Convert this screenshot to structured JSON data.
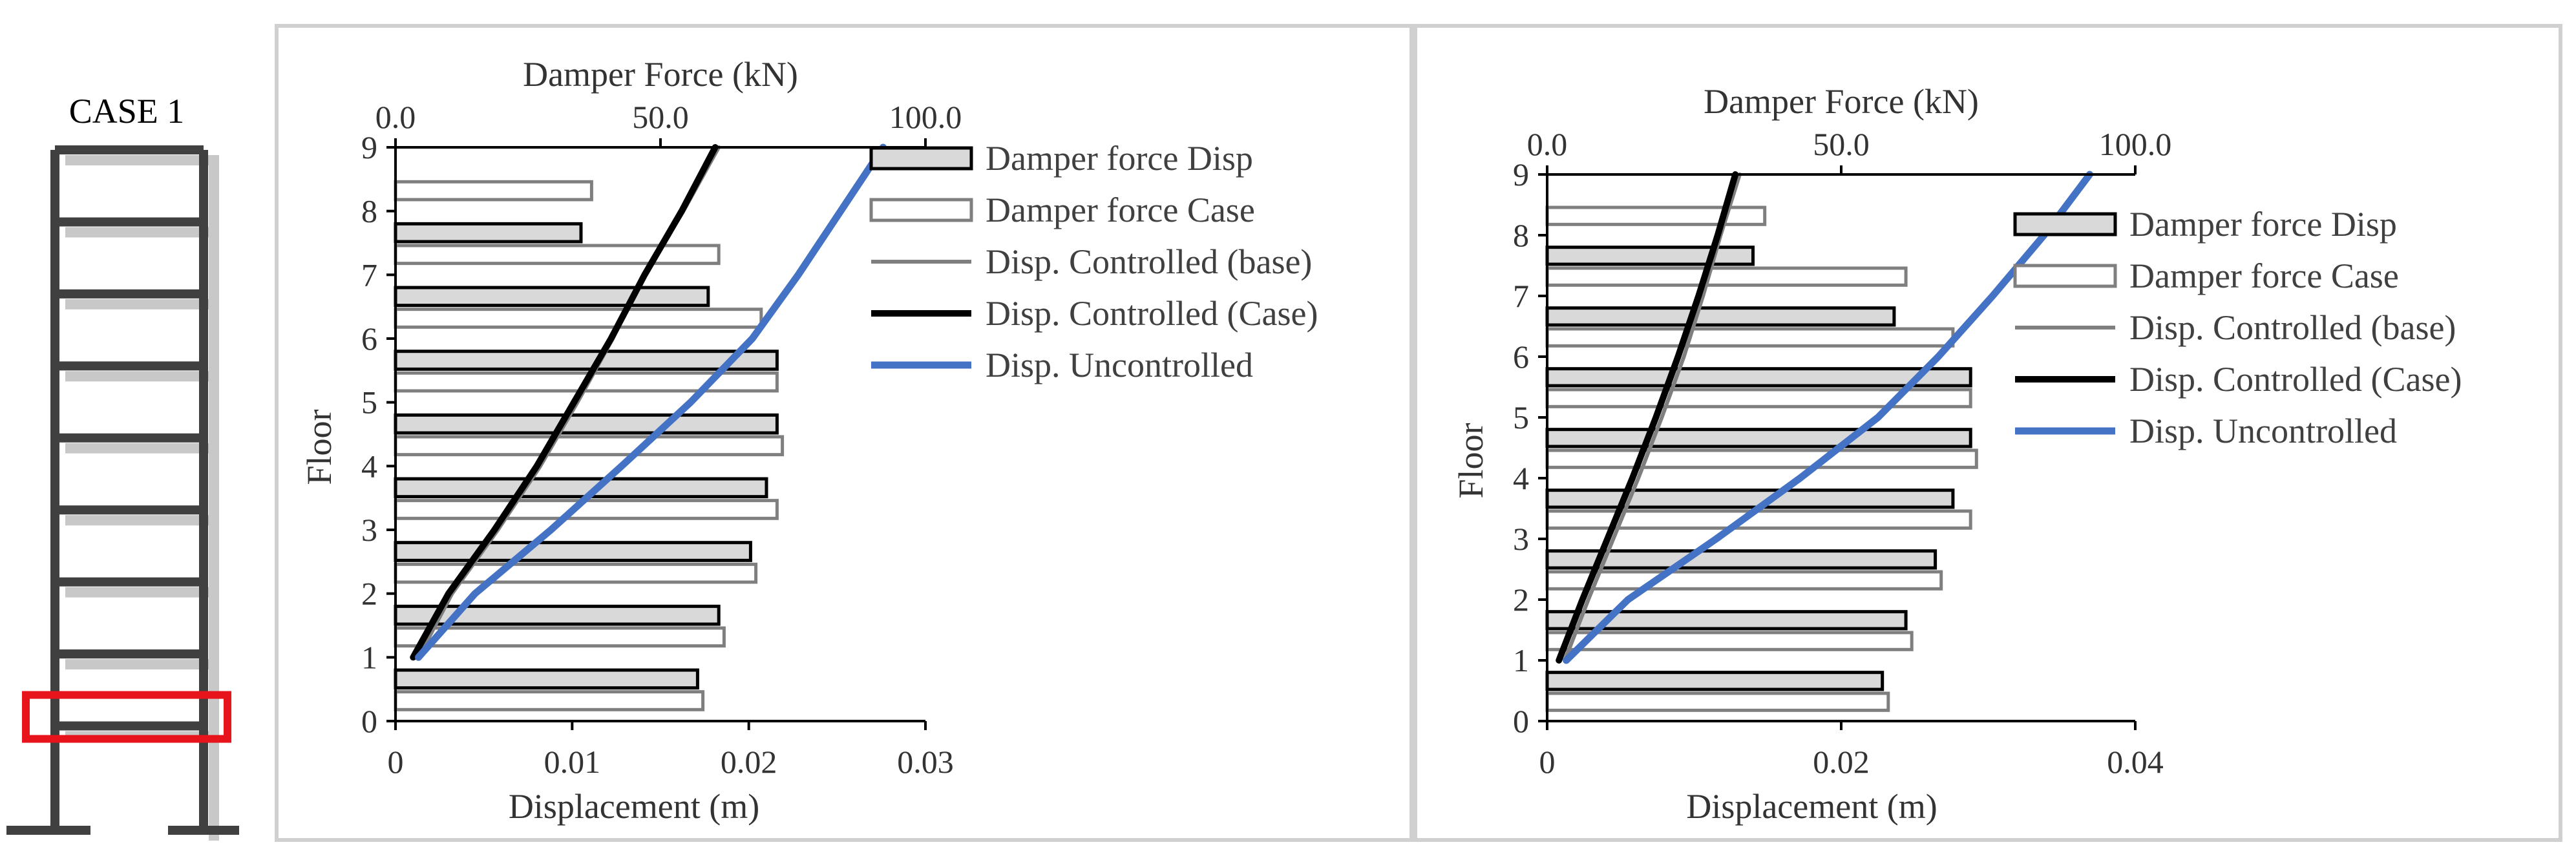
{
  "building": {
    "label": "CASE 1",
    "stories": 9,
    "highlighted_story": 2,
    "highlight_color": "#e8141c",
    "frame_color": "#404040",
    "shadow_color": "#c8c8c8"
  },
  "chart_data": [
    {
      "type": "bar",
      "orientation": "horizontal",
      "title": "",
      "xlabel_top": "Damper Force (kN)",
      "xlabel_bottom": "Displacement (m)",
      "ylabel": "Floor",
      "xlim_top": [
        0,
        100
      ],
      "xticks_top": [
        "0.0",
        "50.0",
        "100.0"
      ],
      "xlim_bottom": [
        0,
        0.03
      ],
      "xticks_bottom": [
        "0",
        "0.01",
        "0.02",
        "0.03"
      ],
      "ylim": [
        0,
        9
      ],
      "yticks": [
        "0",
        "1",
        "2",
        "3",
        "4",
        "5",
        "6",
        "7",
        "8",
        "9"
      ],
      "grid": false,
      "legend_position": "right",
      "floors": [
        1,
        2,
        3,
        4,
        5,
        6,
        7,
        8,
        9
      ],
      "series": [
        {
          "name": "Damper force Disp",
          "kind": "bar",
          "values": [
            57,
            61,
            67,
            70,
            72,
            72,
            59,
            35,
            0
          ]
        },
        {
          "name": "Damper force Case",
          "kind": "bar",
          "values": [
            58,
            62,
            68,
            72,
            73,
            72,
            69,
            61,
            37
          ]
        },
        {
          "name": "Disp. Controlled (base)",
          "kind": "line",
          "points": [
            [
              0.0013,
              1
            ],
            [
              0.0032,
              2
            ],
            [
              0.0058,
              3
            ],
            [
              0.0082,
              4
            ],
            [
              0.0103,
              5
            ],
            [
              0.0123,
              6
            ],
            [
              0.0141,
              7
            ],
            [
              0.0163,
              8
            ],
            [
              0.0183,
              9
            ]
          ]
        },
        {
          "name": "Disp. Controlled (Case)",
          "kind": "line",
          "points": [
            [
              0.001,
              1
            ],
            [
              0.003,
              2
            ],
            [
              0.0056,
              3
            ],
            [
              0.008,
              4
            ],
            [
              0.0101,
              5
            ],
            [
              0.0122,
              6
            ],
            [
              0.0141,
              7
            ],
            [
              0.0162,
              8
            ],
            [
              0.0181,
              9
            ]
          ]
        },
        {
          "name": "Disp. Uncontrolled",
          "kind": "line",
          "points": [
            [
              0.0013,
              1
            ],
            [
              0.0045,
              2
            ],
            [
              0.0088,
              3
            ],
            [
              0.0128,
              4
            ],
            [
              0.0167,
              5
            ],
            [
              0.0202,
              6
            ],
            [
              0.0228,
              7
            ],
            [
              0.0252,
              8
            ],
            [
              0.0276,
              9
            ]
          ]
        }
      ]
    },
    {
      "type": "bar",
      "orientation": "horizontal",
      "title": "",
      "xlabel_top": "Damper Force (kN)",
      "xlabel_bottom": "Displacement (m)",
      "ylabel": "Floor",
      "xlim_top": [
        0,
        100
      ],
      "xticks_top": [
        "0.0",
        "50.0",
        "100.0"
      ],
      "xlim_bottom": [
        0,
        0.04
      ],
      "xticks_bottom": [
        "0",
        "0.02",
        "0.04"
      ],
      "ylim": [
        0,
        9
      ],
      "yticks": [
        "0",
        "1",
        "2",
        "3",
        "4",
        "5",
        "6",
        "7",
        "8",
        "9"
      ],
      "grid": false,
      "legend_position": "right",
      "floors": [
        1,
        2,
        3,
        4,
        5,
        6,
        7,
        8,
        9
      ],
      "series": [
        {
          "name": "Damper force Disp",
          "kind": "bar",
          "values": [
            57,
            61,
            66,
            69,
            72,
            72,
            59,
            35,
            0
          ]
        },
        {
          "name": "Damper force Case",
          "kind": "bar",
          "values": [
            58,
            62,
            67,
            72,
            73,
            72,
            69,
            61,
            37
          ]
        },
        {
          "name": "Disp. Controlled (base)",
          "kind": "line",
          "points": [
            [
              0.0012,
              1
            ],
            [
              0.0028,
              2
            ],
            [
              0.0045,
              3
            ],
            [
              0.0062,
              4
            ],
            [
              0.0078,
              5
            ],
            [
              0.0093,
              6
            ],
            [
              0.0106,
              7
            ],
            [
              0.0118,
              8
            ],
            [
              0.0131,
              9
            ]
          ]
        },
        {
          "name": "Disp. Controlled (Case)",
          "kind": "line",
          "points": [
            [
              0.0008,
              1
            ],
            [
              0.0024,
              2
            ],
            [
              0.0041,
              3
            ],
            [
              0.0058,
              4
            ],
            [
              0.0074,
              5
            ],
            [
              0.0089,
              6
            ],
            [
              0.0103,
              7
            ],
            [
              0.0116,
              8
            ],
            [
              0.0128,
              9
            ]
          ]
        },
        {
          "name": "Disp. Uncontrolled",
          "kind": "line",
          "points": [
            [
              0.0013,
              1
            ],
            [
              0.0055,
              2
            ],
            [
              0.0115,
              3
            ],
            [
              0.0172,
              4
            ],
            [
              0.0225,
              5
            ],
            [
              0.0266,
              6
            ],
            [
              0.0303,
              7
            ],
            [
              0.0338,
              8
            ],
            [
              0.0369,
              9
            ]
          ]
        }
      ]
    }
  ],
  "styles": {
    "bar_disp": {
      "fill": "#d9d9d9",
      "stroke": "#000000"
    },
    "bar_case": {
      "fill": "#ffffff",
      "stroke": "#7f7f7f"
    },
    "line_base": "#7f7f7f",
    "line_case": "#000000",
    "line_unc": "#4472c4",
    "axis": "#000000"
  }
}
